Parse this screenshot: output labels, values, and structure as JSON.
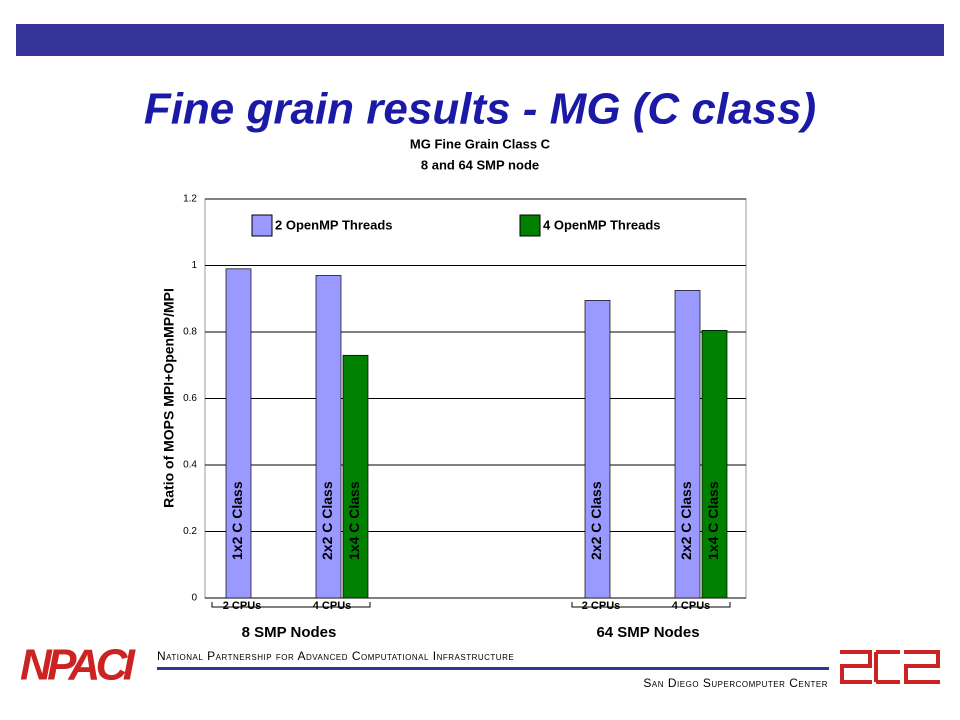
{
  "slide_title": "Fine grain results - MG (C class)",
  "footer": {
    "top_line": "National Partnership for Advanced Computational Infrastructure",
    "bottom_line": "San Diego Supercomputer Center",
    "logo": "NPACI"
  },
  "chart_data": {
    "type": "bar",
    "title": [
      "MG Fine Grain Class C",
      "8  and 64 SMP node"
    ],
    "ylabel": "Ratio of MOPS MPI+OpenMP/MPI",
    "categories": [
      "2 CPUs",
      "4 CPUs",
      "2 CPUs",
      "4 CPUs"
    ],
    "groups": [
      "8 SMP Nodes",
      "64 SMP Nodes"
    ],
    "series": [
      {
        "name": "2 OpenMP Threads",
        "color": "#9999ff",
        "values": [
          0.99,
          0.97,
          0.895,
          0.925
        ],
        "bar_labels": [
          "1x2 C Class",
          "2x2 C Class",
          "2x2 C Class",
          "2x2 C Class"
        ]
      },
      {
        "name": "4 OpenMP Threads",
        "color": "#008000",
        "values": [
          null,
          0.73,
          null,
          0.805
        ],
        "bar_labels": [
          null,
          "1x4 C Class",
          null,
          "1x4 C Class"
        ]
      }
    ],
    "ylim": [
      0,
      1.2
    ],
    "yticks": [
      0,
      0.2,
      0.4,
      0.6,
      0.8,
      1,
      1.2
    ],
    "grid": true,
    "legend": "top"
  }
}
